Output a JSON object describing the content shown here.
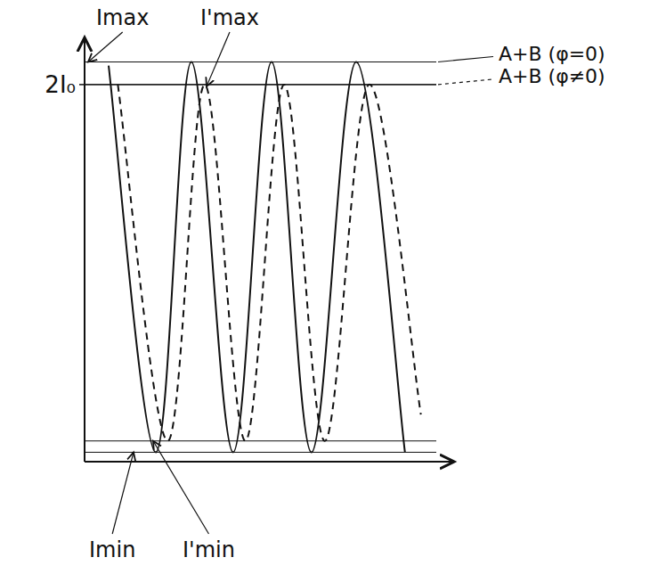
{
  "chart_data": {
    "type": "line",
    "xlim": [
      0,
      10
    ],
    "ylim": [
      0,
      2.25
    ],
    "yticks": [
      {
        "value": 2,
        "label": "2I₀"
      }
    ],
    "grid": true,
    "tick_labels": "y",
    "series": [
      {
        "name": "A+B (φ=0)",
        "color": "#111111",
        "line_style": "solid",
        "x": [
          0.65,
          1.93,
          2.89,
          4.02,
          5.06,
          6.14,
          7.35,
          8.67
        ],
        "values": [
          2.1,
          0.05,
          2.12,
          0.05,
          2.12,
          0.05,
          2.12,
          0.05
        ]
      },
      {
        "name": "A+B (φ≠0)",
        "color": "#111111",
        "line_style": "dashed",
        "x": [
          0.9,
          2.25,
          3.25,
          4.35,
          5.4,
          6.5,
          7.7,
          9.1
        ],
        "values": [
          2.0,
          0.11,
          2.0,
          0.11,
          2.0,
          0.11,
          2.0,
          0.25
        ]
      }
    ],
    "levels": [
      {
        "name": "Imax",
        "value": 2.12
      },
      {
        "name": "I'max",
        "value": 2.0
      },
      {
        "name": "Imin",
        "value": 0.05
      },
      {
        "name": "I'min",
        "value": 0.11
      }
    ]
  }
}
